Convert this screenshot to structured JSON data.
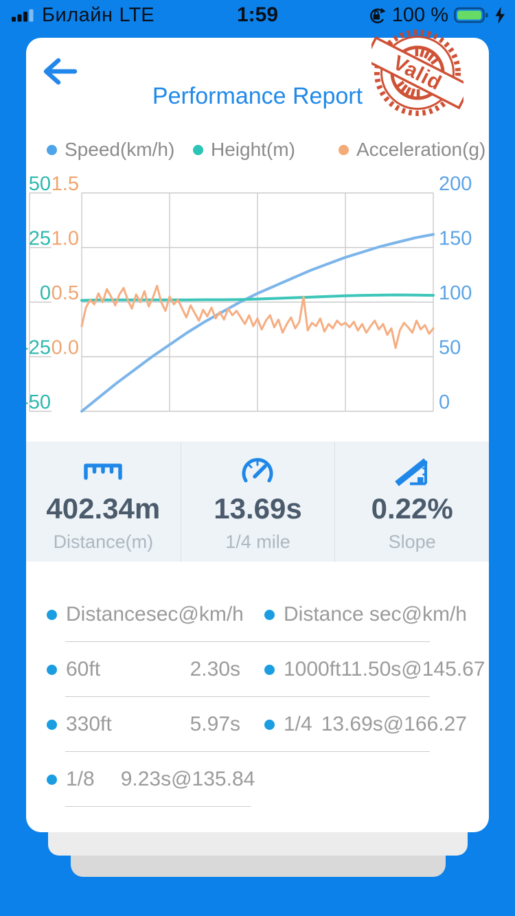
{
  "status_bar": {
    "carrier": "Билайн",
    "network": "LTE",
    "time": "1:59",
    "battery": "100 %"
  },
  "header": {
    "title": "Performance Report",
    "stamp": "Valid",
    "stamp_color": "#cc4426",
    "title_color": "#2089e9"
  },
  "legend": {
    "items": [
      {
        "label": "Speed(km/h)",
        "color": "#4da4e8"
      },
      {
        "label": "Height(m)",
        "color": "#2cc4b4"
      },
      {
        "label": "Acceleration(g)",
        "color": "#f5ab77"
      }
    ]
  },
  "chart_data": {
    "type": "line",
    "title": "",
    "grid": true,
    "legend_position": "top",
    "x_axis": {
      "labels_visible": false
    },
    "axes": {
      "left_teal": {
        "labels": [
          "50",
          "25",
          "0",
          "-25",
          "-50"
        ],
        "range": [
          -50,
          50
        ],
        "color": "#2cb8ae"
      },
      "left_orange": {
        "labels": [
          "1.5",
          "1.0",
          "0.5",
          "0.0"
        ],
        "range": [
          -0.5,
          1.5
        ],
        "color": "#f0a470"
      },
      "right_blue": {
        "labels": [
          "200",
          "150",
          "100",
          "50",
          "0"
        ],
        "range": [
          0,
          200
        ],
        "color": "#5ca4e6"
      }
    },
    "series": [
      {
        "name": "Speed(km/h)",
        "axis": "right_blue",
        "color": "#7cb5ea",
        "width": 4,
        "values": [
          0,
          13,
          26,
          38,
          50,
          61,
          72,
          82,
          91,
          100,
          108,
          115,
          122,
          129,
          135,
          141,
          146,
          151,
          155,
          159,
          162
        ]
      },
      {
        "name": "Height(m)",
        "axis": "left_teal",
        "color": "#3cc5b9",
        "width": 4,
        "values": [
          0.8,
          1.0,
          1.0,
          1.0,
          1.0,
          1.0,
          1.0,
          1.1,
          1.1,
          1.2,
          1.4,
          1.7,
          2.0,
          2.3,
          2.6,
          2.9,
          3.1,
          3.2,
          3.3,
          3.2,
          3.1
        ]
      },
      {
        "name": "Acceleration(g)",
        "axis": "left_orange",
        "color": "#f5ae82",
        "width": 3,
        "values": [
          0.28,
          0.45,
          0.52,
          0.48,
          0.58,
          0.5,
          0.62,
          0.55,
          0.47,
          0.57,
          0.63,
          0.52,
          0.44,
          0.57,
          0.5,
          0.6,
          0.46,
          0.54,
          0.65,
          0.5,
          0.42,
          0.55,
          0.48,
          0.52,
          0.44,
          0.36,
          0.47,
          0.4,
          0.33,
          0.43,
          0.37,
          0.45,
          0.35,
          0.41,
          0.34,
          0.44,
          0.38,
          0.42,
          0.36,
          0.3,
          0.38,
          0.28,
          0.35,
          0.25,
          0.33,
          0.38,
          0.27,
          0.34,
          0.22,
          0.3,
          0.36,
          0.26,
          0.32,
          0.55,
          0.24,
          0.31,
          0.28,
          0.35,
          0.23,
          0.3,
          0.26,
          0.33,
          0.29,
          0.31,
          0.27,
          0.32,
          0.24,
          0.3,
          0.22,
          0.28,
          0.33,
          0.25,
          0.3,
          0.2,
          0.26,
          0.08,
          0.24,
          0.31,
          0.27,
          0.22,
          0.33,
          0.25,
          0.29,
          0.21,
          0.26
        ]
      }
    ]
  },
  "stats": {
    "items": [
      {
        "icon": "ruler-icon",
        "value": "402.34m",
        "label": "Distance(m)"
      },
      {
        "icon": "gauge-icon",
        "value": "13.69s",
        "label": "1/4 mile"
      },
      {
        "icon": "slope-icon",
        "value": "0.22%",
        "label": "Slope"
      }
    ],
    "icon_color": "#1f87e8"
  },
  "table": {
    "headers": [
      {
        "label": "Distance",
        "value": "sec@km/h"
      },
      {
        "label": "Distance",
        "value": "sec@km/h"
      }
    ],
    "rows": [
      {
        "left": {
          "label": "60ft",
          "value": "2.30s"
        },
        "right": {
          "label": "1000ft",
          "value": "11.50s@145.67"
        }
      },
      {
        "left": {
          "label": "330ft",
          "value": "5.97s"
        },
        "right": {
          "label": "1/4",
          "value": "13.69s@166.27"
        }
      },
      {
        "left": {
          "label": "1/8",
          "value": "9.23s@135.84"
        },
        "right": {
          "label": "",
          "value": ""
        }
      }
    ]
  }
}
